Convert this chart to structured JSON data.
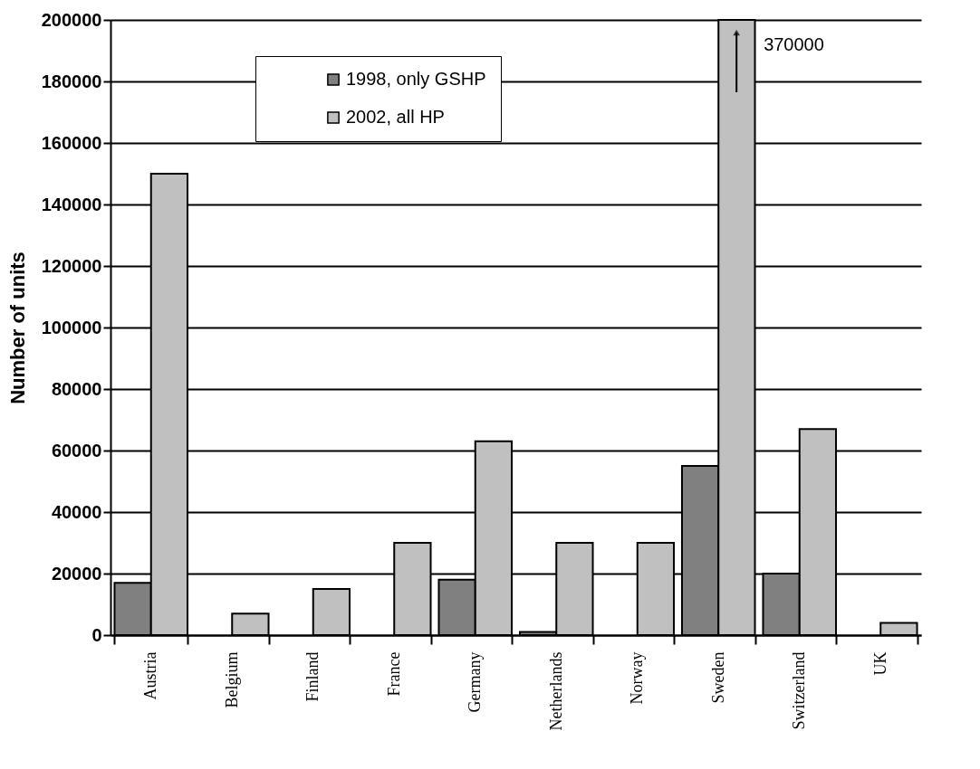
{
  "chart_data": {
    "type": "bar",
    "ylabel": "Number of units",
    "categories": [
      "Austria",
      "Belgium",
      "Finland",
      "France",
      "Germany",
      "Netherlands",
      "Norway",
      "Sweden",
      "Switzerland",
      "UK"
    ],
    "series": [
      {
        "name": "1998, only GSHP",
        "color": "#808080",
        "values": [
          17000,
          null,
          null,
          null,
          18000,
          1000,
          null,
          55000,
          20000,
          null
        ]
      },
      {
        "name": "2002, all HP",
        "color": "#c0c0c0",
        "values": [
          150000,
          7000,
          15000,
          30000,
          63000,
          30000,
          30000,
          200000,
          67000,
          4000
        ]
      }
    ],
    "annotations": [
      {
        "text": "370000",
        "x": "Sweden",
        "y": 200000
      }
    ],
    "ylim": [
      0,
      200000
    ],
    "yticks": [
      0,
      20000,
      40000,
      60000,
      80000,
      100000,
      120000,
      140000,
      160000,
      180000,
      200000
    ],
    "grid": "y",
    "legend": "top"
  }
}
